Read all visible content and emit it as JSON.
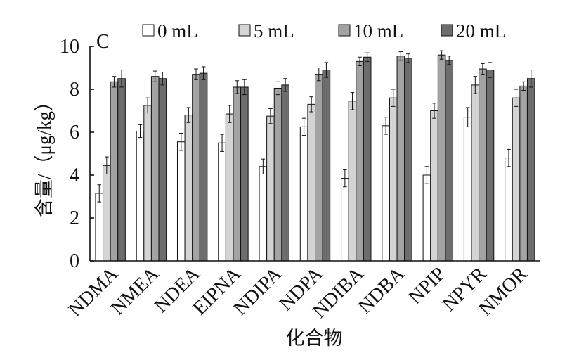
{
  "chart_data": {
    "type": "bar",
    "panel_label": "C",
    "categories": [
      "NDMA",
      "NMEA",
      "NDEA",
      "EIPNA",
      "NDIPA",
      "NDPA",
      "NDIBA",
      "NDBA",
      "NPIP",
      "NPYR",
      "NMOR"
    ],
    "series": [
      {
        "name": "0 mL",
        "color": "#ffffff",
        "values": [
          3.15,
          6.05,
          5.55,
          5.5,
          4.4,
          6.25,
          3.85,
          6.3,
          4.0,
          6.7,
          4.8
        ],
        "error": [
          0.4,
          0.3,
          0.4,
          0.4,
          0.35,
          0.4,
          0.4,
          0.4,
          0.4,
          0.45,
          0.4
        ]
      },
      {
        "name": "5 mL",
        "color": "#d4d4d4",
        "values": [
          4.45,
          7.25,
          6.8,
          6.85,
          6.75,
          7.3,
          7.45,
          7.6,
          7.0,
          8.2,
          7.6
        ],
        "error": [
          0.4,
          0.35,
          0.35,
          0.4,
          0.35,
          0.35,
          0.4,
          0.4,
          0.35,
          0.4,
          0.4
        ]
      },
      {
        "name": "10 mL",
        "color": "#a3a3a3",
        "values": [
          8.35,
          8.6,
          8.7,
          8.1,
          8.05,
          8.7,
          9.3,
          9.55,
          9.6,
          8.95,
          8.15
        ],
        "error": [
          0.25,
          0.25,
          0.25,
          0.3,
          0.3,
          0.3,
          0.2,
          0.2,
          0.2,
          0.25,
          0.2
        ]
      },
      {
        "name": "20 mL",
        "color": "#6d6d6d",
        "values": [
          8.5,
          8.5,
          8.75,
          8.1,
          8.2,
          8.9,
          9.5,
          9.45,
          9.35,
          8.9,
          8.5
        ],
        "error": [
          0.4,
          0.3,
          0.3,
          0.35,
          0.3,
          0.35,
          0.2,
          0.2,
          0.2,
          0.35,
          0.4
        ]
      }
    ],
    "xlabel": "化合物",
    "ylabel": "含量/（μg/kg）",
    "ylim": [
      0,
      10
    ],
    "yticks": [
      0,
      2,
      4,
      6,
      8,
      10
    ],
    "legend": "top",
    "grid": false
  }
}
